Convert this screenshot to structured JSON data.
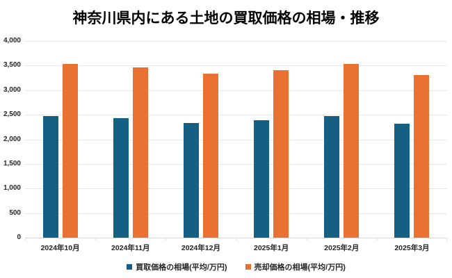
{
  "chart_data": {
    "type": "bar",
    "title": "神奈川県内にある土地の買取価格の相場・推移",
    "categories": [
      "2024年10月",
      "2024年11月",
      "2024年12月",
      "2025年1月",
      "2025年2月",
      "2025年3月"
    ],
    "series": [
      {
        "name": "買取価格の相場(平均/万円)",
        "color": "#156082",
        "values": [
          2470,
          2430,
          2330,
          2390,
          2470,
          2320
        ]
      },
      {
        "name": "売却価格の相場(平均/万円)",
        "color": "#E97132",
        "values": [
          3540,
          3460,
          3330,
          3410,
          3540,
          3310
        ]
      }
    ],
    "xlabel": "",
    "ylabel": "",
    "ylim": [
      0,
      4000
    ],
    "y_ticks": [
      "0",
      "500",
      "1,000",
      "1,500",
      "2,000",
      "2,500",
      "3,000",
      "3,500",
      "4,000"
    ],
    "grid": true,
    "legend_position": "bottom",
    "colors": {
      "gridline": "#e6e6e6",
      "axis_line": "#d9d9d9",
      "tick_mark": "#d9d9d9",
      "label_text": "#262626",
      "title_text": "#000000",
      "background": "#ffffff"
    }
  }
}
